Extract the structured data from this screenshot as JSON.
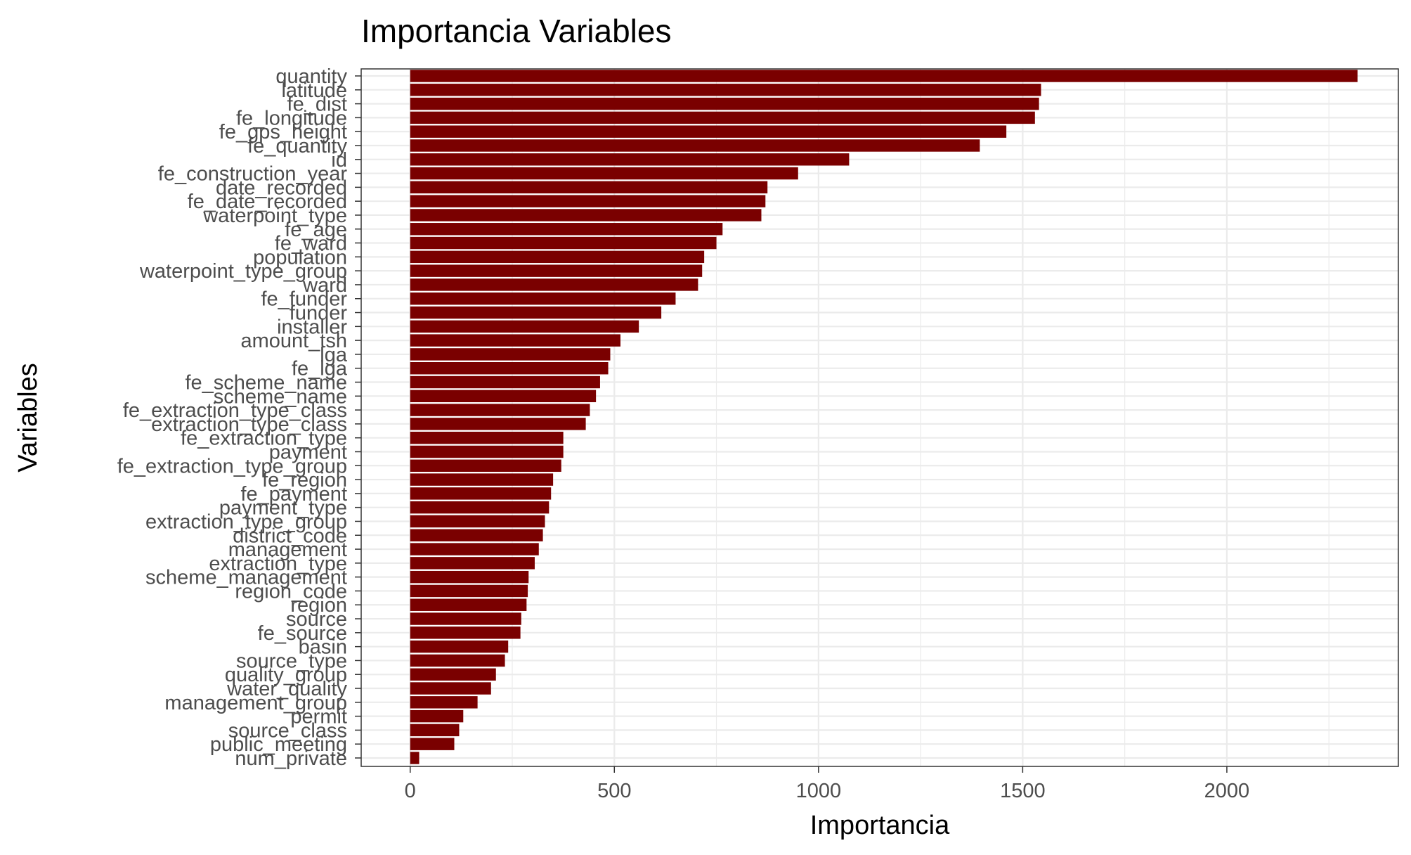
{
  "chart_data": {
    "type": "bar",
    "orientation": "horizontal",
    "title": "Importancia Variables",
    "xlabel": "Importancia",
    "ylabel": "Variables",
    "xlim": [
      -120,
      2420
    ],
    "xticks": [
      0,
      500,
      1000,
      1500,
      2000
    ],
    "xtick_labels": [
      "0",
      "500",
      "1000",
      "1500",
      "2000"
    ],
    "bar_color": "#7a0000",
    "grid": true,
    "categories": [
      "quantity",
      "latitude",
      "fe_dist",
      "fe_longitude",
      "fe_gps_height",
      "fe_quantity",
      "id",
      "fe_construction_year",
      "date_recorded",
      "fe_date_recorded",
      "waterpoint_type",
      "fe_age",
      "fe_ward",
      "population",
      "waterpoint_type_group",
      "ward",
      "fe_funder",
      "funder",
      "installer",
      "amount_tsh",
      "lga",
      "fe_lga",
      "fe_scheme_name",
      "scheme_name",
      "fe_extraction_type_class",
      "extraction_type_class",
      "fe_extraction_type",
      "payment",
      "fe_extraction_type_group",
      "fe_region",
      "fe_payment",
      "payment_type",
      "extraction_type_group",
      "district_code",
      "management",
      "extraction_type",
      "scheme_management",
      "region_code",
      "region",
      "source",
      "fe_source",
      "basin",
      "source_type",
      "quality_group",
      "water_quality",
      "management_group",
      "permit",
      "source_class",
      "public_meeting",
      "num_private"
    ],
    "values": [
      2320,
      1545,
      1540,
      1530,
      1460,
      1395,
      1075,
      950,
      875,
      870,
      860,
      765,
      750,
      720,
      715,
      705,
      650,
      615,
      560,
      515,
      490,
      485,
      465,
      455,
      440,
      430,
      375,
      375,
      370,
      350,
      345,
      340,
      330,
      325,
      315,
      305,
      290,
      288,
      285,
      272,
      270,
      240,
      232,
      210,
      198,
      165,
      130,
      120,
      108,
      22
    ]
  }
}
